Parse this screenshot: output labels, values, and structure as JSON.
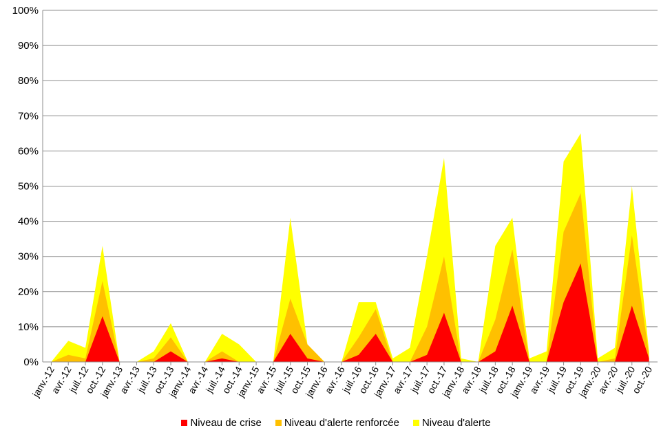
{
  "chart_data": {
    "type": "area",
    "stacked": true,
    "x": [
      "janv.-12",
      "avr.-12",
      "juil.-12",
      "oct.-12",
      "janv.-13",
      "avr.-13",
      "juil.-13",
      "oct.-13",
      "janv.-14",
      "avr.-14",
      "juil.-14",
      "oct.-14",
      "janv.-15",
      "avr.-15",
      "juil.-15",
      "oct.-15",
      "janv.-16",
      "avr.-16",
      "juil.-16",
      "oct.-16",
      "janv.-17",
      "avr.-17",
      "juil.-17",
      "oct.-17",
      "janv.-18",
      "avr.-18",
      "juil.-18",
      "oct.-18",
      "janv.-19",
      "avr.-19",
      "juil.-19",
      "oct.-19",
      "janv.-20",
      "avr.-20",
      "juil.-20",
      "oct.-20"
    ],
    "ylim": [
      0,
      100
    ],
    "ytick_labels": [
      "0%",
      "10%",
      "20%",
      "30%",
      "40%",
      "50%",
      "60%",
      "70%",
      "80%",
      "90%",
      "100%"
    ],
    "grid": true,
    "legend_position": "bottom",
    "series": [
      {
        "name": "Niveau de crise",
        "color": "#ff0000",
        "values": [
          0,
          0,
          0,
          13,
          0,
          0,
          0,
          3,
          0,
          0,
          1,
          0,
          0,
          0,
          8,
          1,
          0,
          0,
          2,
          8,
          0,
          0,
          2,
          14,
          0,
          0,
          3,
          16,
          0,
          0,
          17,
          28,
          0,
          0,
          16,
          1
        ]
      },
      {
        "name": "Niveau d'alerte renforcée",
        "color": "#ffc000",
        "values": [
          0,
          2,
          1,
          10,
          0,
          0,
          1,
          4,
          0,
          0,
          2,
          0,
          0,
          0,
          10,
          4,
          0,
          0,
          5,
          7,
          0,
          0,
          8,
          16,
          0,
          0,
          9,
          16,
          0,
          0,
          20,
          20,
          0,
          1,
          20,
          1
        ]
      },
      {
        "name": "Niveau d'alerte",
        "color": "#ffff00",
        "values": [
          0,
          4,
          3,
          10,
          0,
          0,
          2,
          4,
          0,
          0,
          5,
          5,
          0,
          0,
          23,
          0,
          0,
          0,
          10,
          2,
          1,
          4,
          20,
          28,
          1,
          0,
          21,
          9,
          1,
          3,
          20,
          17,
          1,
          3,
          14,
          1
        ]
      }
    ]
  }
}
